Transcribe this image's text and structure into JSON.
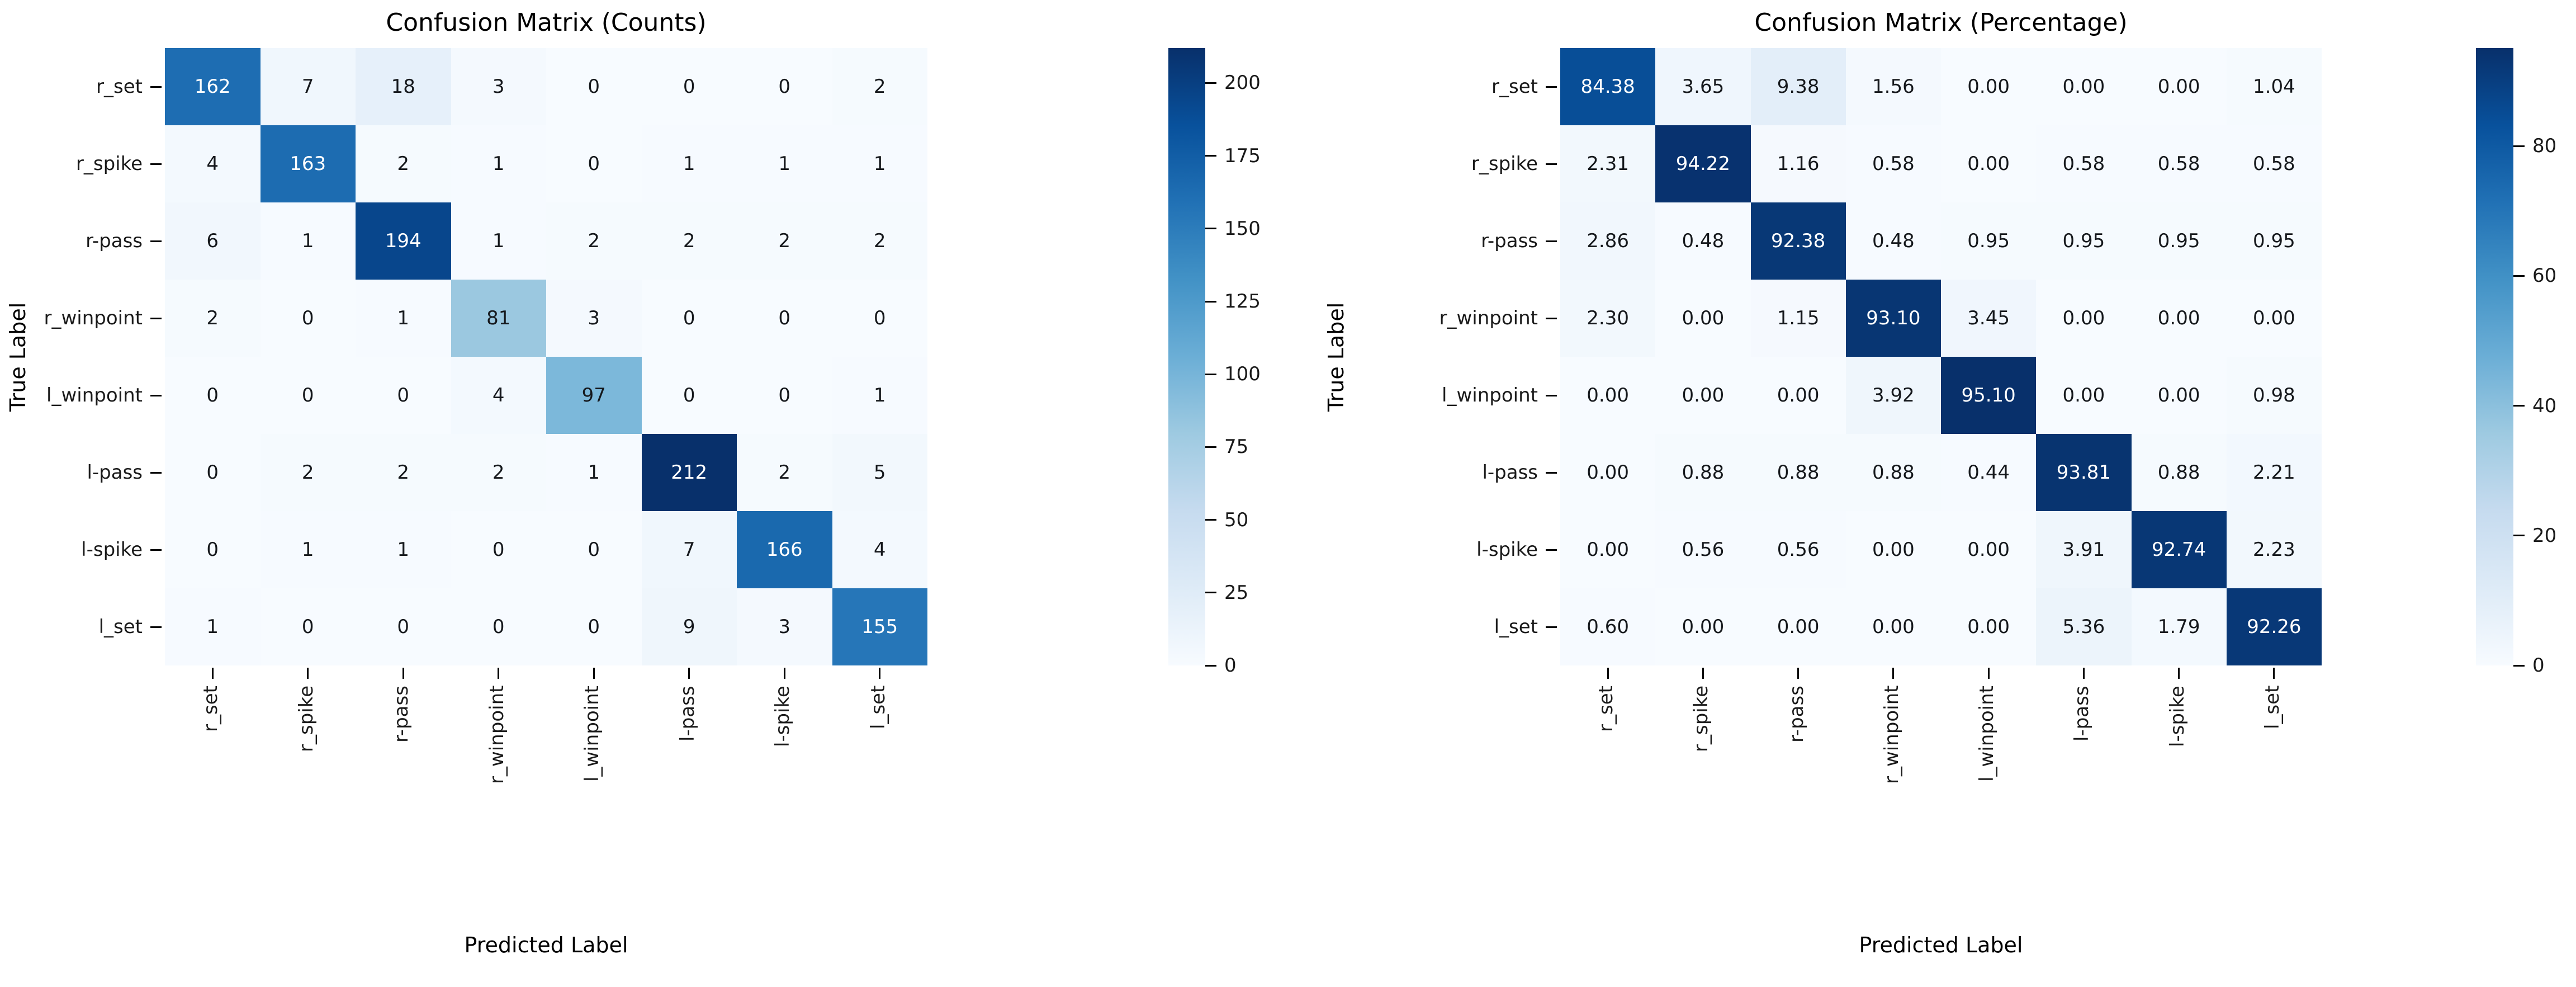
{
  "chart_data": [
    {
      "type": "heatmap",
      "title": "Confusion Matrix (Counts)",
      "xlabel": "Predicted Label",
      "ylabel": "True Label",
      "categories": [
        "r_set",
        "r_spike",
        "r-pass",
        "r_winpoint",
        "l_winpoint",
        "l-pass",
        "l-spike",
        "l_set"
      ],
      "matrix": [
        [
          162,
          7,
          18,
          3,
          0,
          0,
          0,
          2
        ],
        [
          4,
          163,
          2,
          1,
          0,
          1,
          1,
          1
        ],
        [
          6,
          1,
          194,
          1,
          2,
          2,
          2,
          2
        ],
        [
          2,
          0,
          1,
          81,
          3,
          0,
          0,
          0
        ],
        [
          0,
          0,
          0,
          4,
          97,
          0,
          0,
          1
        ],
        [
          0,
          2,
          2,
          2,
          1,
          212,
          2,
          5
        ],
        [
          0,
          1,
          1,
          0,
          0,
          7,
          166,
          4
        ],
        [
          1,
          0,
          0,
          0,
          0,
          9,
          3,
          155
        ]
      ],
      "value_format": "int",
      "vmin": 0,
      "vmax": 212,
      "colorbar_ticks": [
        0,
        25,
        50,
        75,
        100,
        125,
        150,
        175,
        200
      ],
      "legend_position": "right-colorbar",
      "grid": false
    },
    {
      "type": "heatmap",
      "title": "Confusion Matrix (Percentage)",
      "xlabel": "Predicted Label",
      "ylabel": "True Label",
      "categories": [
        "r_set",
        "r_spike",
        "r-pass",
        "r_winpoint",
        "l_winpoint",
        "l-pass",
        "l-spike",
        "l_set"
      ],
      "matrix": [
        [
          84.38,
          3.65,
          9.38,
          1.56,
          0.0,
          0.0,
          0.0,
          1.04
        ],
        [
          2.31,
          94.22,
          1.16,
          0.58,
          0.0,
          0.58,
          0.58,
          0.58
        ],
        [
          2.86,
          0.48,
          92.38,
          0.48,
          0.95,
          0.95,
          0.95,
          0.95
        ],
        [
          2.3,
          0.0,
          1.15,
          93.1,
          3.45,
          0.0,
          0.0,
          0.0
        ],
        [
          0.0,
          0.0,
          0.0,
          3.92,
          95.1,
          0.0,
          0.0,
          0.98
        ],
        [
          0.0,
          0.88,
          0.88,
          0.88,
          0.44,
          93.81,
          0.88,
          2.21
        ],
        [
          0.0,
          0.56,
          0.56,
          0.0,
          0.0,
          3.91,
          92.74,
          2.23
        ],
        [
          0.6,
          0.0,
          0.0,
          0.0,
          0.0,
          5.36,
          1.79,
          92.26
        ]
      ],
      "value_format": "2dp",
      "vmin": 0,
      "vmax": 95.1,
      "colorbar_ticks": [
        0,
        20,
        40,
        60,
        80
      ],
      "legend_position": "right-colorbar",
      "grid": false
    }
  ],
  "colors": {
    "colormap_name": "Blues",
    "colormap_stops": [
      "#f7fbff",
      "#deebf7",
      "#c6dbef",
      "#9ecae1",
      "#6baed6",
      "#4292c6",
      "#2171b5",
      "#08519c",
      "#08306b"
    ],
    "annotation_dark_text": "#15181c",
    "annotation_light_text": "#ffffff",
    "background": "#ffffff"
  }
}
